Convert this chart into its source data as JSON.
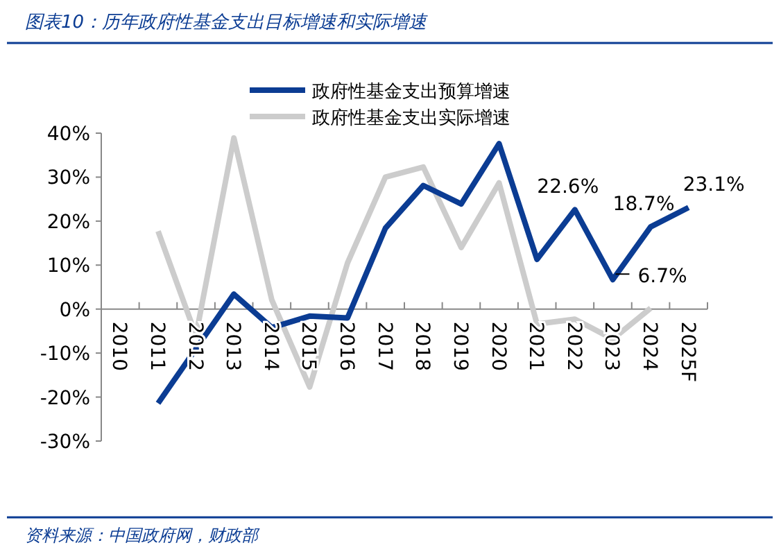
{
  "chart_data": {
    "type": "line",
    "title": "图表10：历年政府性基金支出目标增速和实际增速",
    "categories": [
      "2010",
      "2011",
      "2012",
      "2013",
      "2014",
      "2015",
      "2016",
      "2017",
      "2018",
      "2019",
      "2020",
      "2021",
      "2022",
      "2023",
      "2024",
      "2025F"
    ],
    "series": [
      {
        "name": "政府性基金支出预算增速",
        "color": "#0b3c93",
        "values": [
          null,
          -21.4,
          -9,
          3.4,
          -4.2,
          -1.6,
          -2,
          18.4,
          28.1,
          23.9,
          37.6,
          11.3,
          22.6,
          6.7,
          18.7,
          23.1
        ]
      },
      {
        "name": "政府性基金支出实际增速",
        "color": "#cccccc",
        "values": [
          null,
          17.7,
          -6,
          38.9,
          2.1,
          -17.7,
          10.5,
          30,
          32.3,
          14,
          28.7,
          -3.4,
          -2.3,
          -6.8,
          0.2,
          null
        ]
      }
    ],
    "ylim": [
      -30,
      40
    ],
    "yticks": [
      {
        "value": -30,
        "label": "-30%"
      },
      {
        "value": -20,
        "label": "-20%"
      },
      {
        "value": -10,
        "label": "-10%"
      },
      {
        "value": 0,
        "label": "0%"
      },
      {
        "value": 10,
        "label": "10%"
      },
      {
        "value": 20,
        "label": "20%"
      },
      {
        "value": 30,
        "label": "30%"
      },
      {
        "value": 40,
        "label": "40%"
      }
    ],
    "legend": "top",
    "annotations": [
      {
        "text": "22.6%",
        "x": "2022",
        "y": 22.6
      },
      {
        "text": "6.7%",
        "x": "2023",
        "y": 6.7
      },
      {
        "text": "18.7%",
        "x": "2024",
        "y": 18.7
      },
      {
        "text": "23.1%",
        "x": "2025F",
        "y": 23.1
      },
      "资料来源：中国政府网，财政部"
    ]
  }
}
